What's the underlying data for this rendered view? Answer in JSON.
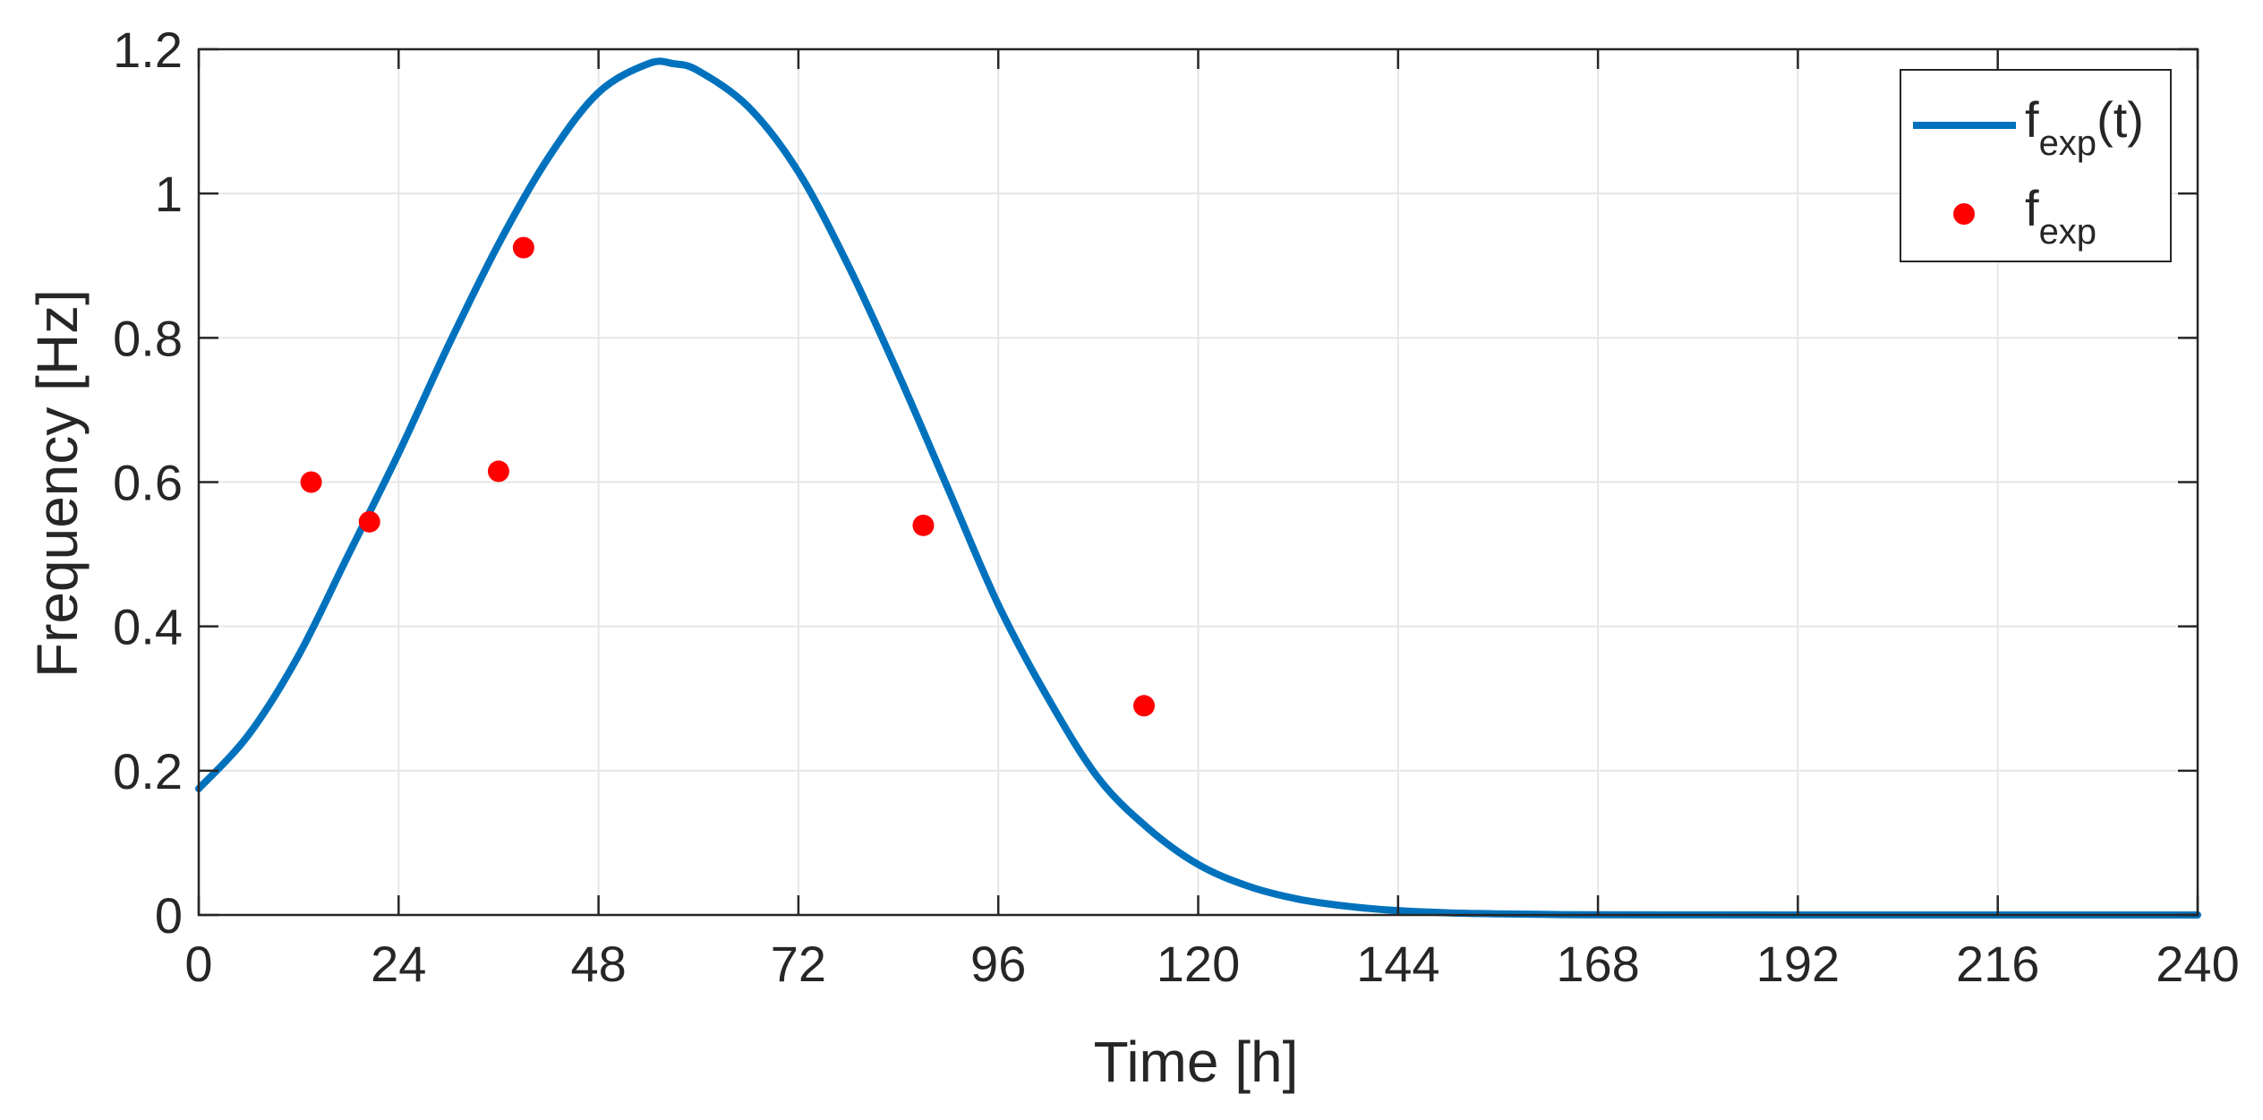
{
  "chart_data": {
    "type": "line",
    "title": "",
    "xlabel": "Time [h]",
    "ylabel": "Frequency [Hz]",
    "xlim": [
      0,
      240
    ],
    "ylim": [
      0,
      1.2
    ],
    "xticks": [
      0,
      24,
      48,
      72,
      96,
      120,
      144,
      168,
      192,
      216,
      240
    ],
    "yticks": [
      0,
      0.2,
      0.4,
      0.6,
      0.8,
      1,
      1.2
    ],
    "xtick_labels": [
      "0",
      "24",
      "48",
      "72",
      "96",
      "120",
      "144",
      "168",
      "192",
      "216",
      "240"
    ],
    "ytick_labels": [
      "0",
      "0.2",
      "0.4",
      "0.6",
      "0.8",
      "1",
      "1.2"
    ],
    "grid": true,
    "legend_position": "top-right",
    "series": [
      {
        "name": "fexp(t)",
        "label_main": "f",
        "label_sub": "exp",
        "label_suffix": "(t)",
        "kind": "line",
        "color": "#0072BD",
        "x": [
          0,
          6,
          12,
          18,
          24,
          30,
          36,
          42,
          48,
          54,
          57,
          60,
          66,
          72,
          78,
          84,
          90,
          96,
          102,
          108,
          114,
          120,
          126,
          132,
          138,
          144,
          150,
          156,
          162,
          168,
          180,
          192,
          204,
          216,
          228,
          240
        ],
        "y": [
          0.175,
          0.25,
          0.36,
          0.5,
          0.64,
          0.79,
          0.93,
          1.05,
          1.14,
          1.18,
          1.18,
          1.17,
          1.12,
          1.03,
          0.9,
          0.75,
          0.59,
          0.43,
          0.3,
          0.19,
          0.12,
          0.07,
          0.04,
          0.022,
          0.012,
          0.006,
          0.003,
          0.0015,
          0.0007,
          0.0003,
          0.0001,
          0,
          0,
          0,
          0,
          0
        ]
      },
      {
        "name": "fexp",
        "label_main": "f",
        "label_sub": "exp",
        "label_suffix": "",
        "kind": "scatter",
        "color": "#FF0000",
        "x": [
          13.5,
          20.5,
          36,
          39,
          87,
          113.5
        ],
        "y": [
          0.6,
          0.545,
          0.615,
          0.925,
          0.54,
          0.29
        ]
      }
    ]
  }
}
